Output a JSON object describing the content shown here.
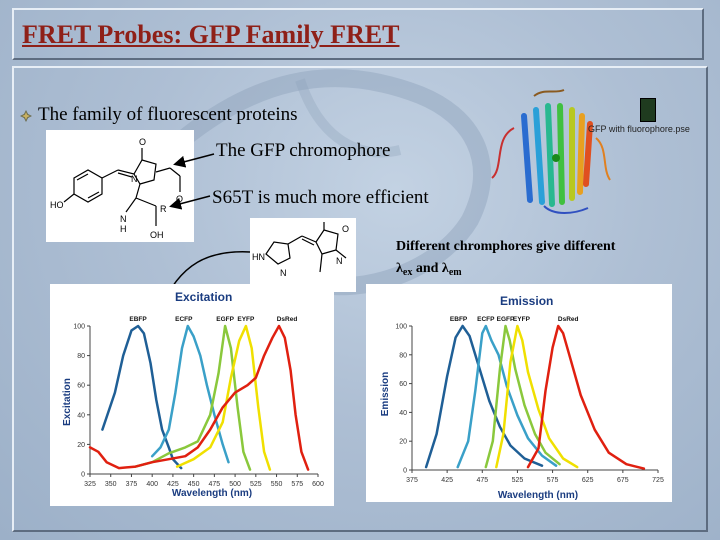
{
  "slide": {
    "title": "FRET Probes: GFP Family FRET",
    "bullet": "The family of fluorescent proteins",
    "chromophore_label": "The GFP chromophore",
    "s65t_label": "S65T is much more efficient",
    "note_line1": "Different chromphores give different",
    "note_lambda1": "λ",
    "note_ex": "ex",
    "note_and": " and ",
    "note_lambda2": "λ",
    "note_em": "em",
    "protein_file_label": "GFP with fluorophore.pse"
  },
  "structure1": {
    "atoms": [
      "O",
      "N",
      "HO",
      "N",
      "H",
      "R",
      "O",
      "OH"
    ]
  },
  "structure2": {
    "atoms": [
      "O",
      "N",
      "HN",
      "N"
    ]
  },
  "chart_data": [
    {
      "type": "line",
      "title": "Excitation",
      "xlabel": "Wavelength (nm)",
      "ylabel": "Excitation",
      "xlim": [
        325,
        600
      ],
      "ylim": [
        0,
        100
      ],
      "xticks": [
        325,
        350,
        375,
        400,
        425,
        450,
        475,
        500,
        525,
        550,
        575,
        600
      ],
      "yticks": [
        0,
        20,
        40,
        60,
        80,
        100
      ],
      "grid": false,
      "series": [
        {
          "name": "EBFP",
          "color": "#1f5f96",
          "points": [
            [
              340,
              30
            ],
            [
              355,
              55
            ],
            [
              365,
              80
            ],
            [
              375,
              97
            ],
            [
              383,
              100
            ],
            [
              390,
              95
            ],
            [
              398,
              75
            ],
            [
              405,
              50
            ],
            [
              412,
              30
            ],
            [
              420,
              18
            ],
            [
              425,
              10
            ],
            [
              435,
              4
            ]
          ]
        },
        {
          "name": "ECFP",
          "color": "#3aa0c8",
          "points": [
            [
              400,
              12
            ],
            [
              410,
              18
            ],
            [
              420,
              30
            ],
            [
              428,
              55
            ],
            [
              436,
              85
            ],
            [
              443,
              100
            ],
            [
              450,
              93
            ],
            [
              458,
              80
            ],
            [
              466,
              60
            ],
            [
              475,
              40
            ],
            [
              485,
              20
            ],
            [
              492,
              8
            ]
          ]
        },
        {
          "name": "EGFP",
          "color": "#8ac83c",
          "points": [
            [
              380,
              5
            ],
            [
              400,
              8
            ],
            [
              420,
              14
            ],
            [
              440,
              18
            ],
            [
              455,
              22
            ],
            [
              470,
              40
            ],
            [
              480,
              68
            ],
            [
              488,
              100
            ],
            [
              495,
              85
            ],
            [
              503,
              45
            ],
            [
              510,
              15
            ],
            [
              518,
              3
            ]
          ]
        },
        {
          "name": "EYFP",
          "color": "#f0e000",
          "points": [
            [
              430,
              5
            ],
            [
              450,
              10
            ],
            [
              470,
              18
            ],
            [
              485,
              35
            ],
            [
              495,
              65
            ],
            [
              505,
              90
            ],
            [
              513,
              100
            ],
            [
              520,
              85
            ],
            [
              528,
              45
            ],
            [
              535,
              15
            ],
            [
              542,
              3
            ]
          ]
        },
        {
          "name": "DsRed",
          "color": "#e02010",
          "points": [
            [
              325,
              18
            ],
            [
              335,
              15
            ],
            [
              345,
              8
            ],
            [
              360,
              4
            ],
            [
              380,
              5
            ],
            [
              400,
              8
            ],
            [
              420,
              10
            ],
            [
              440,
              12
            ],
            [
              455,
              18
            ],
            [
              470,
              30
            ],
            [
              485,
              45
            ],
            [
              500,
              55
            ],
            [
              515,
              60
            ],
            [
              525,
              65
            ],
            [
              535,
              80
            ],
            [
              545,
              92
            ],
            [
              553,
              100
            ],
            [
              560,
              92
            ],
            [
              567,
              70
            ],
            [
              573,
              40
            ],
            [
              580,
              15
            ],
            [
              588,
              3
            ]
          ]
        }
      ]
    },
    {
      "type": "line",
      "title": "Emission",
      "xlabel": "Wavelength (nm)",
      "ylabel": "Emission",
      "xlim": [
        375,
        725
      ],
      "ylim": [
        0,
        100
      ],
      "xticks": [
        375,
        425,
        475,
        525,
        575,
        625,
        675,
        725
      ],
      "yticks": [
        0,
        20,
        40,
        60,
        80,
        100
      ],
      "grid": false,
      "series": [
        {
          "name": "EBFP",
          "color": "#1f5f96",
          "points": [
            [
              395,
              2
            ],
            [
              410,
              25
            ],
            [
              425,
              65
            ],
            [
              437,
              92
            ],
            [
              447,
              100
            ],
            [
              457,
              93
            ],
            [
              470,
              72
            ],
            [
              485,
              48
            ],
            [
              500,
              30
            ],
            [
              515,
              17
            ],
            [
              535,
              8
            ],
            [
              560,
              3
            ]
          ]
        },
        {
          "name": "ECFP",
          "color": "#3aa0c8",
          "points": [
            [
              440,
              2
            ],
            [
              455,
              20
            ],
            [
              465,
              55
            ],
            [
              475,
              95
            ],
            [
              480,
              100
            ],
            [
              488,
              90
            ],
            [
              498,
              80
            ],
            [
              510,
              58
            ],
            [
              525,
              38
            ],
            [
              540,
              22
            ],
            [
              560,
              10
            ],
            [
              580,
              3
            ]
          ]
        },
        {
          "name": "EGFP",
          "color": "#8ac83c",
          "points": [
            [
              480,
              2
            ],
            [
              490,
              20
            ],
            [
              500,
              70
            ],
            [
              508,
              100
            ],
            [
              514,
              90
            ],
            [
              522,
              70
            ],
            [
              535,
              45
            ],
            [
              550,
              25
            ],
            [
              565,
              12
            ],
            [
              585,
              4
            ]
          ]
        },
        {
          "name": "EYFP",
          "color": "#f0e000",
          "points": [
            [
              495,
              2
            ],
            [
              505,
              25
            ],
            [
              515,
              75
            ],
            [
              525,
              100
            ],
            [
              532,
              90
            ],
            [
              540,
              68
            ],
            [
              555,
              42
            ],
            [
              570,
              22
            ],
            [
              590,
              8
            ],
            [
              610,
              2
            ]
          ]
        },
        {
          "name": "DsRed",
          "color": "#e02010",
          "points": [
            [
              540,
              2
            ],
            [
              555,
              15
            ],
            [
              565,
              55
            ],
            [
              575,
              85
            ],
            [
              583,
              100
            ],
            [
              590,
              95
            ],
            [
              600,
              78
            ],
            [
              615,
              52
            ],
            [
              635,
              28
            ],
            [
              655,
              12
            ],
            [
              680,
              4
            ],
            [
              705,
              1
            ]
          ]
        }
      ]
    }
  ]
}
